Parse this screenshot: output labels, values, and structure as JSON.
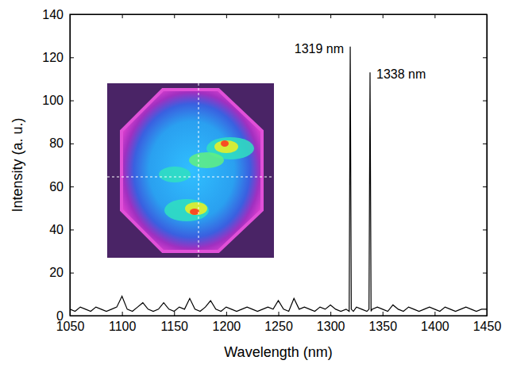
{
  "chart_data": {
    "type": "line",
    "color": "#000000",
    "x_label": "Wavelength (nm)",
    "y_label": "Intensity (a. u.)",
    "x": [
      1050,
      1055,
      1060,
      1065,
      1070,
      1075,
      1080,
      1085,
      1090,
      1095,
      1100,
      1105,
      1110,
      1115,
      1120,
      1125,
      1130,
      1135,
      1140,
      1145,
      1150,
      1155,
      1160,
      1165,
      1170,
      1175,
      1180,
      1185,
      1190,
      1195,
      1200,
      1205,
      1210,
      1215,
      1220,
      1225,
      1230,
      1235,
      1240,
      1245,
      1250,
      1255,
      1260,
      1265,
      1270,
      1275,
      1280,
      1285,
      1290,
      1295,
      1300,
      1305,
      1310,
      1315,
      1318,
      1319,
      1320,
      1322,
      1325,
      1330,
      1335,
      1337,
      1338,
      1339,
      1340,
      1345,
      1350,
      1355,
      1360,
      1365,
      1370,
      1375,
      1380,
      1385,
      1390,
      1395,
      1400,
      1405,
      1410,
      1415,
      1420,
      1425,
      1430,
      1435,
      1440,
      1445,
      1450
    ],
    "values": [
      3,
      2,
      4,
      3,
      2,
      4,
      3,
      2,
      3,
      4,
      9,
      3,
      2,
      4,
      6,
      3,
      2,
      3,
      6,
      3,
      2,
      4,
      3,
      8,
      3,
      2,
      4,
      7,
      3,
      2,
      4,
      3,
      2,
      3,
      4,
      3,
      2,
      3,
      4,
      3,
      7,
      3,
      2,
      8,
      3,
      4,
      3,
      2,
      4,
      3,
      5,
      3,
      2,
      3,
      2,
      125,
      3,
      2,
      4,
      3,
      2,
      3,
      113,
      2,
      3,
      4,
      3,
      2,
      5,
      3,
      2,
      4,
      3,
      2,
      3,
      4,
      3,
      2,
      4,
      3,
      2,
      3,
      4,
      3,
      2,
      3,
      3
    ],
    "xlim": [
      1050,
      1450
    ],
    "xticks": [
      1050,
      1100,
      1150,
      1200,
      1250,
      1300,
      1350,
      1400,
      1450
    ],
    "ylim": [
      0,
      140
    ],
    "yticks": [
      0,
      20,
      40,
      60,
      80,
      100,
      120,
      140
    ],
    "annotations": [
      {
        "text": "1319 nm",
        "x": 1319,
        "y": 125
      },
      {
        "text": "1338 nm",
        "x": 1338,
        "y": 113
      }
    ]
  }
}
